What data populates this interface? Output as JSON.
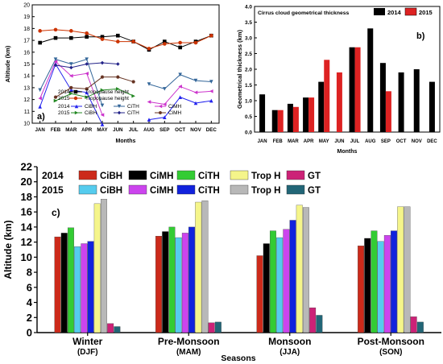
{
  "chart_data": [
    {
      "type": "line",
      "panel_label": "a)",
      "xlabel": "Months",
      "ylabel": "Altitude (km)",
      "ylim": [
        10,
        20
      ],
      "yticks": [
        10,
        11,
        12,
        13,
        14,
        15,
        16,
        17,
        18,
        19,
        20
      ],
      "categories": [
        "JAN",
        "FEB",
        "MAR",
        "APR",
        "MAY",
        "JUN",
        "JUL",
        "AUG",
        "SEP",
        "OCT",
        "NOV",
        "DEC"
      ],
      "legend_rows": [
        {
          "year": "2014",
          "label": "Tropopause height"
        },
        {
          "year": "2015",
          "label": "Tropopause height"
        },
        {
          "year": "2014",
          "labels": [
            "CiBH",
            "CiTH",
            "CiMH"
          ]
        },
        {
          "year": "2015",
          "labels": [
            "CiBH",
            "CiTH",
            "CiMH"
          ]
        }
      ],
      "series": [
        {
          "name": "Tropopause height",
          "year": "2014",
          "color": "#000000",
          "marker": "square",
          "values": [
            16.8,
            17.2,
            17.2,
            17.3,
            17.3,
            17.4,
            16.9,
            16.2,
            16.9,
            16.4,
            16.9,
            17.4
          ]
        },
        {
          "name": "Tropopause height",
          "year": "2015",
          "color": "#cc3300",
          "marker": "circle",
          "values": [
            17.8,
            17.9,
            17.8,
            17.6,
            17.1,
            16.9,
            16.9,
            16.3,
            16.7,
            16.8,
            16.8,
            17.4
          ]
        },
        {
          "name": "CiBH",
          "year": "2014",
          "color": "#2222ee",
          "marker": "triangle",
          "values": [
            11.4,
            15.0,
            12.8,
            12.6,
            9.9,
            null,
            null,
            10.3,
            10.5,
            12.2,
            11.7,
            11.9
          ]
        },
        {
          "name": "CiTH",
          "year": "2014",
          "color": "#336699",
          "marker": "tri-down",
          "values": [
            12.8,
            15.4,
            15.0,
            15.4,
            11.5,
            null,
            null,
            13.3,
            12.9,
            14.1,
            13.6,
            13.5
          ]
        },
        {
          "name": "CiMH",
          "year": "2014",
          "color": "#cc33cc",
          "marker": "tri-left",
          "values": [
            12.1,
            15.2,
            14.0,
            14.2,
            10.7,
            null,
            null,
            11.8,
            11.6,
            13.1,
            12.6,
            12.7
          ]
        },
        {
          "name": "CiBH",
          "year": "2015",
          "color": "#228822",
          "marker": "tri-right",
          "values": [
            null,
            11.9,
            12.5,
            12.2,
            12.8,
            12.9,
            12.3,
            null,
            null,
            null,
            null,
            null
          ]
        },
        {
          "name": "CiTH",
          "year": "2015",
          "color": "#222288",
          "marker": "diamond",
          "values": [
            null,
            14.9,
            14.7,
            15.0,
            15.1,
            15.0,
            null,
            null,
            null,
            null,
            null,
            null
          ]
        },
        {
          "name": "CiMH",
          "year": "2015",
          "color": "#663322",
          "marker": "hexagon",
          "values": [
            null,
            12.2,
            13.0,
            12.9,
            13.9,
            13.9,
            13.5,
            null,
            null,
            null,
            null,
            null
          ]
        }
      ]
    },
    {
      "type": "bar",
      "panel_label": "b)",
      "title": "Cirrus cloud geometrical thickness",
      "xlabel": "Months",
      "ylabel": "Geometrical thickness (km)",
      "ylim": [
        0,
        4.0
      ],
      "yticks": [
        0.0,
        0.5,
        1.0,
        1.5,
        2.0,
        2.5,
        3.0,
        3.5,
        4.0
      ],
      "categories": [
        "JAN",
        "FEB",
        "MAR",
        "APR",
        "MAY",
        "JUN",
        "JUL",
        "AUG",
        "SEP",
        "OCT",
        "NOV",
        "DEC"
      ],
      "series": [
        {
          "name": "2014",
          "color": "#000000",
          "values": [
            1.2,
            0.7,
            0.9,
            1.1,
            1.6,
            null,
            2.7,
            3.3,
            2.2,
            1.9,
            2.0,
            1.6
          ]
        },
        {
          "name": "2015",
          "color": "#dd2222",
          "values": [
            null,
            0.7,
            0.8,
            1.1,
            2.3,
            1.9,
            2.7,
            null,
            1.3,
            null,
            null,
            null
          ]
        }
      ]
    },
    {
      "type": "bar",
      "panel_label": "c)",
      "xlabel": "Seasons",
      "ylabel": "Altitude (km)",
      "ylim": [
        0,
        22
      ],
      "yticks": [
        0,
        2,
        4,
        6,
        8,
        10,
        12,
        14,
        16,
        18,
        20,
        22
      ],
      "categories": [
        "Winter",
        "Pre-Monsoon",
        "Monsoon",
        "Post-Monsoon"
      ],
      "category_sublabels": [
        "(DJF)",
        "(MAM)",
        "(JJA)",
        "(SON)"
      ],
      "legend_years": [
        "2014",
        "2015"
      ],
      "legend_labels": [
        "CiBH",
        "CiMH",
        "CiTH",
        "Trop H",
        "GT"
      ],
      "series": [
        {
          "name": "CiBH",
          "year": "2014",
          "color": "#cc2a1a",
          "values": [
            12.7,
            12.8,
            10.2,
            11.5
          ]
        },
        {
          "name": "CiMH",
          "year": "2014",
          "color": "#000000",
          "values": [
            13.2,
            13.4,
            11.8,
            12.5
          ]
        },
        {
          "name": "CiTH",
          "year": "2014",
          "color": "#33cc33",
          "values": [
            13.9,
            14.0,
            13.5,
            13.5
          ]
        },
        {
          "name": "CiBH",
          "year": "2015",
          "color": "#55ccee",
          "values": [
            11.4,
            12.6,
            12.6,
            12.1
          ]
        },
        {
          "name": "CiMH",
          "year": "2015",
          "color": "#cc44ee",
          "values": [
            11.8,
            13.2,
            13.7,
            12.9
          ]
        },
        {
          "name": "CiTH",
          "year": "2015",
          "color": "#1122dd",
          "values": [
            12.1,
            14.0,
            14.9,
            13.5
          ]
        },
        {
          "name": "Trop H",
          "year": "2014",
          "color": "#f5f58a",
          "values": [
            17.1,
            17.3,
            16.9,
            16.7
          ]
        },
        {
          "name": "Trop H",
          "year": "2015",
          "color": "#b8b8b8",
          "values": [
            17.7,
            17.5,
            16.6,
            16.7
          ]
        },
        {
          "name": "GT",
          "year": "2014",
          "color": "#cc2277",
          "values": [
            1.2,
            1.3,
            3.3,
            2.1
          ]
        },
        {
          "name": "GT",
          "year": "2015",
          "color": "#226677",
          "values": [
            0.8,
            1.4,
            2.3,
            1.4
          ]
        }
      ]
    }
  ]
}
